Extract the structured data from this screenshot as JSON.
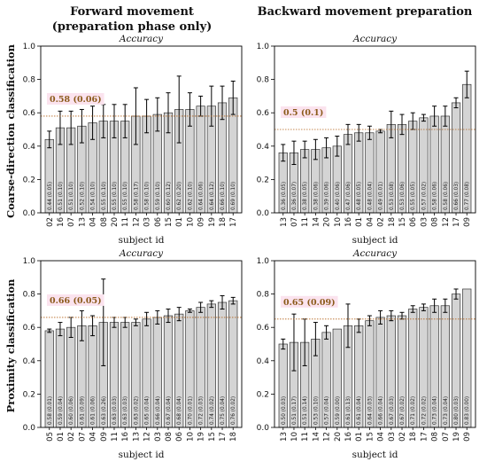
{
  "figure": {
    "col_titles": [
      "Forward movement",
      "(preparation phase only)",
      "Backward movement preparation"
    ],
    "row_labels": [
      "Coarse-direction classification",
      "Proximity classification"
    ]
  },
  "chart_data": [
    {
      "type": "bar",
      "title": "Accuracy",
      "xlabel": "subject id",
      "ylabel": "Coarse-direction classification",
      "ylim": [
        0,
        1
      ],
      "yticks": [
        "0.0",
        "0.2",
        "0.4",
        "0.6",
        "0.8",
        "1.0"
      ],
      "chance_label": "0.58 (0.06)",
      "chance_value": 0.58,
      "categories": [
        "02",
        "16",
        "07",
        "13",
        "04",
        "08",
        "20",
        "11",
        "12",
        "03",
        "06",
        "15",
        "01",
        "10",
        "09",
        "19",
        "18",
        "17"
      ],
      "values": [
        0.44,
        0.51,
        0.51,
        0.52,
        0.54,
        0.55,
        0.55,
        0.55,
        0.58,
        0.58,
        0.59,
        0.6,
        0.62,
        0.62,
        0.64,
        0.64,
        0.66,
        0.69
      ],
      "errors": [
        0.05,
        0.1,
        0.1,
        0.1,
        0.1,
        0.1,
        0.1,
        0.1,
        0.17,
        0.1,
        0.1,
        0.12,
        0.2,
        0.1,
        0.06,
        0.12,
        0.1,
        0.1
      ],
      "value_labels": [
        "0.44 (0.05)",
        "0.51 (0.10)",
        "0.51 (0.10)",
        "0.52 (0.10)",
        "0.54 (0.10)",
        "0.55 (0.10)",
        "0.55 (0.10)",
        "0.55 (0.10)",
        "0.58 (0.17)",
        "0.58 (0.10)",
        "0.59 (0.10)",
        "0.60 (0.12)",
        "0.62 (0.20)",
        "0.62 (0.10)",
        "0.64 (0.06)",
        "0.64 (0.12)",
        "0.66 (0.10)",
        "0.69 (0.10)"
      ]
    },
    {
      "type": "bar",
      "title": "Accuracy",
      "xlabel": "subject id",
      "ylabel": "",
      "ylim": [
        0,
        1
      ],
      "yticks": [
        "0.0",
        "0.2",
        "0.4",
        "0.6",
        "0.8",
        "1.0"
      ],
      "chance_label": "0.5 (0.1)",
      "chance_value": 0.5,
      "categories": [
        "13",
        "07",
        "11",
        "14",
        "20",
        "10",
        "16",
        "01",
        "04",
        "02",
        "18",
        "15",
        "06",
        "03",
        "08",
        "12",
        "17",
        "09"
      ],
      "values": [
        0.36,
        0.36,
        0.38,
        0.38,
        0.39,
        0.4,
        0.47,
        0.48,
        0.48,
        0.49,
        0.53,
        0.53,
        0.55,
        0.57,
        0.58,
        0.58,
        0.66,
        0.77
      ],
      "errors": [
        0.05,
        0.07,
        0.05,
        0.06,
        0.06,
        0.06,
        0.06,
        0.05,
        0.04,
        0.01,
        0.08,
        0.06,
        0.05,
        0.02,
        0.06,
        0.06,
        0.03,
        0.08
      ],
      "value_labels": [
        "0.36 (0.05)",
        "0.36 (0.07)",
        "0.38 (0.05)",
        "0.38 (0.06)",
        "0.39 (0.06)",
        "0.40 (0.06)",
        "0.47 (0.06)",
        "0.48 (0.05)",
        "0.48 (0.04)",
        "0.49 (0.01)",
        "0.53 (0.08)",
        "0.53 (0.06)",
        "0.55 (0.05)",
        "0.57 (0.02)",
        "0.58 (0.06)",
        "0.58 (0.06)",
        "0.66 (0.03)",
        "0.77 (0.08)"
      ]
    },
    {
      "type": "bar",
      "title": "Accuracy",
      "xlabel": "subject id",
      "ylabel": "Proximity classification",
      "ylim": [
        0,
        1
      ],
      "yticks": [
        "0.0",
        "0.2",
        "0.4",
        "0.6",
        "0.8",
        "1.0"
      ],
      "chance_label": "0.66 (0.05)",
      "chance_value": 0.66,
      "categories": [
        "05",
        "01",
        "02",
        "07",
        "04",
        "09",
        "11",
        "16",
        "13",
        "12",
        "03",
        "08",
        "06",
        "10",
        "19",
        "15",
        "17",
        "18"
      ],
      "values": [
        0.58,
        0.59,
        0.6,
        0.61,
        0.61,
        0.63,
        0.63,
        0.63,
        0.63,
        0.65,
        0.66,
        0.67,
        0.68,
        0.7,
        0.72,
        0.74,
        0.75,
        0.76
      ],
      "errors": [
        0.01,
        0.04,
        0.06,
        0.09,
        0.06,
        0.26,
        0.03,
        0.03,
        0.02,
        0.04,
        0.04,
        0.04,
        0.04,
        0.01,
        0.03,
        0.02,
        0.04,
        0.02
      ],
      "value_labels": [
        "0.58 (0.01)",
        "0.59 (0.04)",
        "0.60 (0.06)",
        "0.61 (0.09)",
        "0.61 (0.06)",
        "0.63 (0.26)",
        "0.63 (0.03)",
        "0.63 (0.03)",
        "0.63 (0.02)",
        "0.65 (0.04)",
        "0.66 (0.04)",
        "0.67 (0.04)",
        "0.68 (0.04)",
        "0.70 (0.01)",
        "0.72 (0.03)",
        "0.74 (0.02)",
        "0.75 (0.04)",
        "0.76 (0.02)"
      ]
    },
    {
      "type": "bar",
      "title": "Accuracy",
      "xlabel": "subject id",
      "ylabel": "",
      "ylim": [
        0,
        1
      ],
      "yticks": [
        "0.0",
        "0.2",
        "0.4",
        "0.6",
        "0.8",
        "1.0"
      ],
      "chance_label": "0.65 (0.09)",
      "chance_value": 0.65,
      "categories": [
        "13",
        "10",
        "11",
        "14",
        "12",
        "20",
        "16",
        "01",
        "15",
        "04",
        "03",
        "02",
        "18",
        "17",
        "08",
        "07",
        "19",
        "09"
      ],
      "values": [
        0.5,
        0.51,
        0.51,
        0.53,
        0.57,
        0.59,
        0.61,
        0.61,
        0.64,
        0.66,
        0.67,
        0.67,
        0.71,
        0.72,
        0.73,
        0.73,
        0.8,
        0.83
      ],
      "errors": [
        0.03,
        0.17,
        0.14,
        0.1,
        0.04,
        0.0,
        0.13,
        0.04,
        0.03,
        0.04,
        0.03,
        0.02,
        0.02,
        0.02,
        0.04,
        0.04,
        0.03,
        0.0
      ],
      "value_labels": [
        "0.50 (0.03)",
        "0.51 (0.17)",
        "0.51 (0.14)",
        "0.53 (0.10)",
        "0.57 (0.04)",
        "0.59 (0.00)",
        "0.61 (0.13)",
        "0.61 (0.04)",
        "0.64 (0.03)",
        "0.66 (0.04)",
        "0.67 (0.03)",
        "0.67 (0.02)",
        "0.71 (0.02)",
        "0.72 (0.02)",
        "0.73 (0.04)",
        "0.73 (0.04)",
        "0.80 (0.03)",
        "0.83 (0.00)"
      ]
    }
  ],
  "colors": {
    "bar_fill": "#d4d4d4",
    "bar_edge": "#333333",
    "chance_line": "#b5651d",
    "chance_label_bg": "#fbe3ee",
    "chance_text": "#8b5a1a"
  }
}
